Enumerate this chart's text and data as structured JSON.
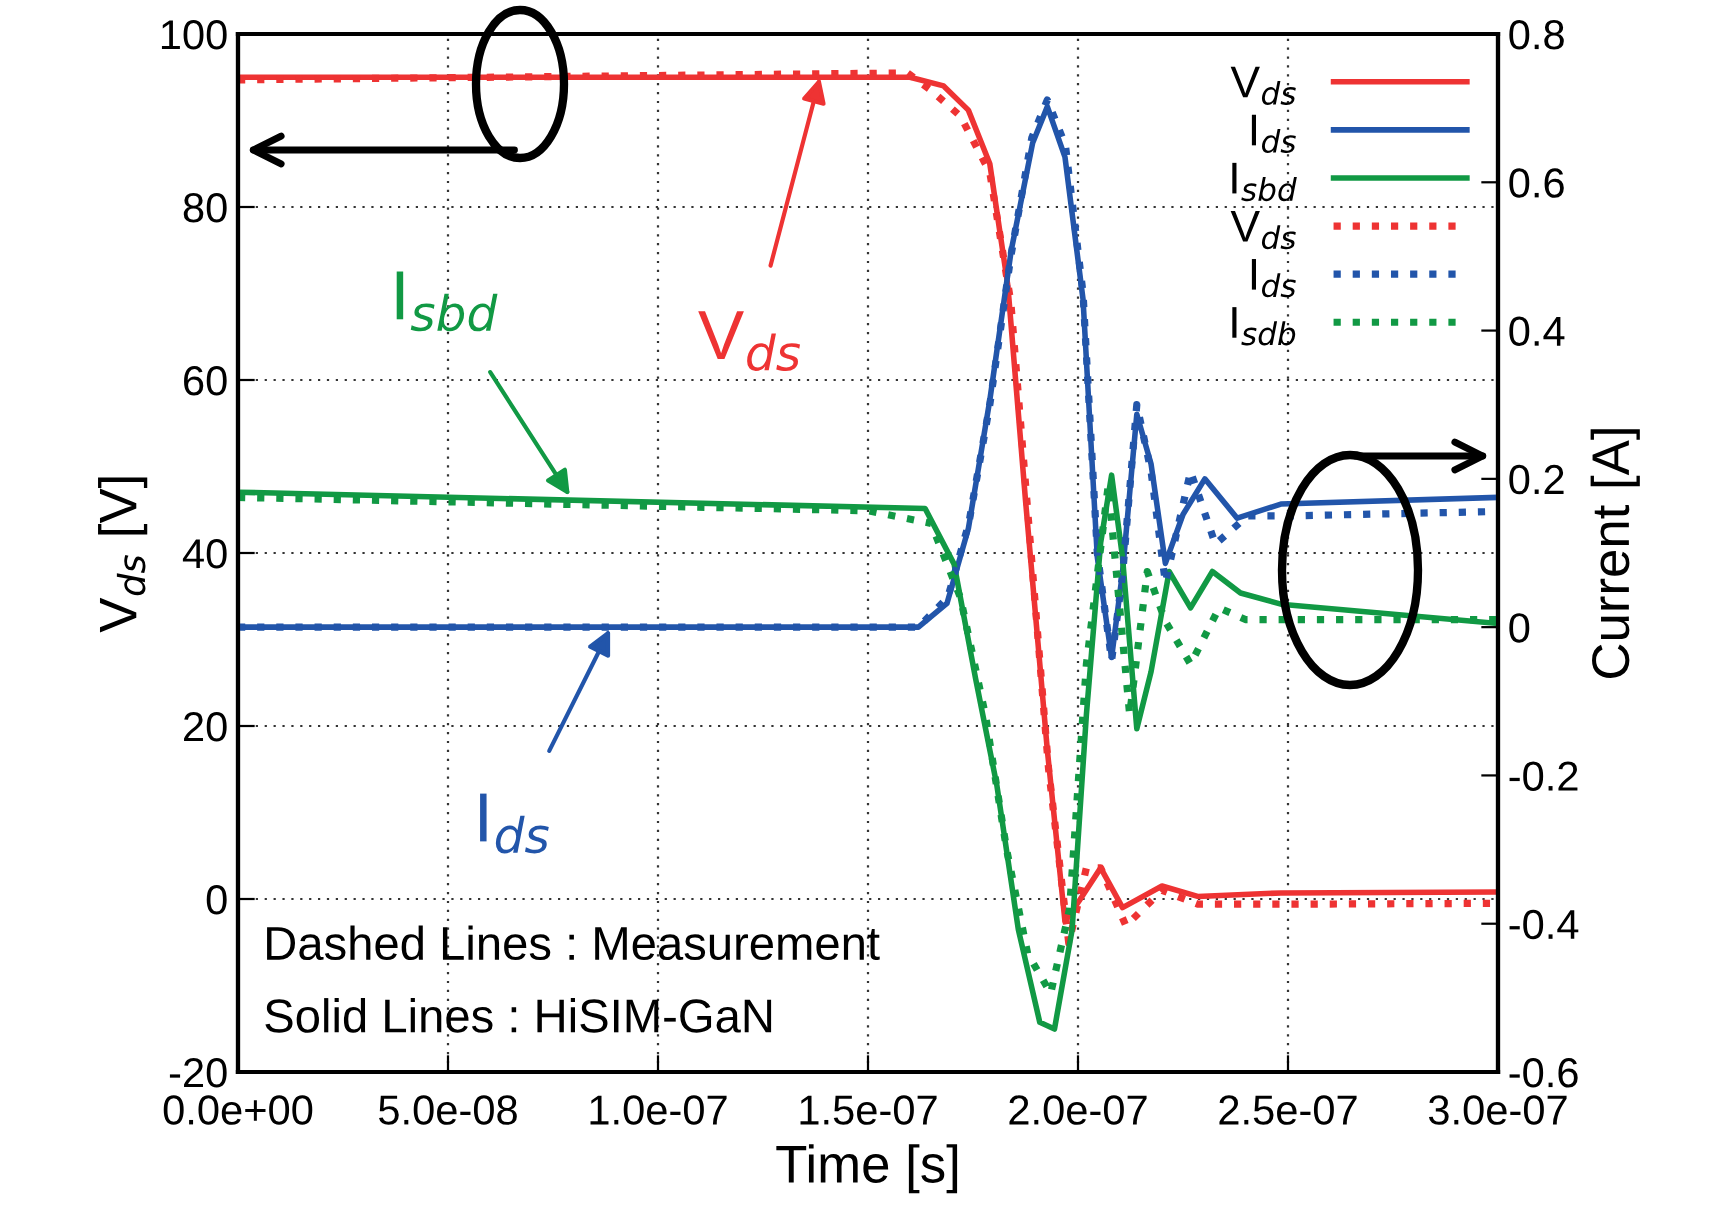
{
  "chart_data": {
    "type": "line",
    "xlabel": "Time [s]",
    "ylabel": "V$_{ds}$ [V]",
    "y2label": "Current [A]",
    "xlim": [
      0,
      3e-07
    ],
    "xticks": [
      {
        "value": 0,
        "label": "0.0e+00"
      },
      {
        "value": 5e-08,
        "label": "5.0e-08"
      },
      {
        "value": 1e-07,
        "label": "1.0e-07"
      },
      {
        "value": 1.5e-07,
        "label": "1.5e-07"
      },
      {
        "value": 2e-07,
        "label": "2.0e-07"
      },
      {
        "value": 2.5e-07,
        "label": "2.5e-07"
      },
      {
        "value": 3e-07,
        "label": "3.0e-07"
      }
    ],
    "ylim": [
      -20,
      100
    ],
    "yticks": [
      -20,
      0,
      20,
      40,
      60,
      80,
      100
    ],
    "y2lim": [
      -0.6,
      0.8
    ],
    "y2ticks": [
      -0.6,
      -0.4,
      -0.2,
      0,
      0.2,
      0.4,
      0.6,
      0.8
    ],
    "grid": true,
    "legend": "top right",
    "marker": "none",
    "series": [
      {
        "name": "V$_{ds}$",
        "color": "#ee3333",
        "line_style": "solid",
        "x": [
          0,
          1.6e-07,
          1.68e-07,
          1.739e-07,
          1.79e-07,
          1.833e-07,
          1.875e-07,
          1.927e-07,
          1.969e-07,
          2.003e-07,
          2.054e-07,
          2.106e-07,
          2.2e-07,
          2.285e-07,
          2.483e-07,
          3e-07
        ],
        "values": [
          95.0,
          95.0,
          94.0,
          91.2,
          85.0,
          70.9,
          46.1,
          17.2,
          -2.6,
          -0.2,
          3.6,
          -1.0,
          1.5,
          0.3,
          0.7,
          0.8
        ]
      },
      {
        "name": "I$_{ds}$",
        "color": "#2255aa",
        "line_style": "solid",
        "axis": "y2",
        "x": [
          0,
          1.62e-07,
          1.688e-07,
          1.739e-07,
          1.79e-07,
          1.841e-07,
          1.892e-07,
          1.927e-07,
          1.969e-07,
          2.012e-07,
          2.046e-07,
          2.08e-07,
          2.106e-07,
          2.14e-07,
          2.174e-07,
          2.208e-07,
          2.25e-07,
          2.302e-07,
          2.379e-07,
          2.483e-07,
          3e-07
        ],
        "values": [
          0,
          0,
          0.032,
          0.133,
          0.306,
          0.508,
          0.653,
          0.702,
          0.634,
          0.442,
          0.094,
          -0.041,
          0.074,
          0.287,
          0.22,
          0.086,
          0.152,
          0.2,
          0.147,
          0.166,
          0.175
        ]
      },
      {
        "name": "I$_{sbd}$",
        "color": "#119944",
        "line_style": "solid",
        "axis": "y2",
        "x": [
          0,
          1.636e-07,
          1.705e-07,
          1.756e-07,
          1.807e-07,
          1.858e-07,
          1.909e-07,
          1.944e-07,
          1.986e-07,
          2.02e-07,
          2.054e-07,
          2.08e-07,
          2.106e-07,
          2.14e-07,
          2.174e-07,
          2.217e-07,
          2.268e-07,
          2.32e-07,
          2.387e-07,
          2.483e-07,
          3e-07
        ],
        "values": [
          0.182,
          0.16,
          0.085,
          -0.069,
          -0.214,
          -0.408,
          -0.533,
          -0.542,
          -0.408,
          -0.118,
          0.114,
          0.205,
          0.094,
          -0.137,
          -0.06,
          0.075,
          0.026,
          0.075,
          0.046,
          0.031,
          0.005
        ]
      },
      {
        "name": "V$_{ds}$",
        "color": "#ee3333",
        "line_style": "dotted",
        "x": [
          0,
          1.594e-07,
          1.65e-07,
          1.72e-07,
          1.79e-07,
          1.84e-07,
          1.88e-07,
          1.93e-07,
          1.978e-07,
          2.02e-07,
          2.054e-07,
          2.114e-07,
          2.2e-07,
          2.285e-07,
          2.5e-07,
          3e-07
        ],
        "values": [
          94.7,
          95.5,
          93.5,
          90.5,
          84.0,
          69.0,
          45.0,
          15.0,
          -5.1,
          3.6,
          3.6,
          -3.1,
          1.0,
          -0.6,
          -0.6,
          -0.5
        ]
      },
      {
        "name": "I$_{ds}$",
        "color": "#2255aa",
        "line_style": "dotted",
        "axis": "y2",
        "x": [
          0,
          1.62e-07,
          1.69e-07,
          1.74e-07,
          1.79e-07,
          1.84e-07,
          1.89e-07,
          1.927e-07,
          1.97e-07,
          2.012e-07,
          2.046e-07,
          2.08e-07,
          2.106e-07,
          2.14e-07,
          2.174e-07,
          2.208e-07,
          2.268e-07,
          2.327e-07,
          2.404e-07,
          2.5e-07,
          3e-07
        ],
        "values": [
          0,
          0,
          0.04,
          0.14,
          0.3,
          0.5,
          0.66,
          0.711,
          0.65,
          0.45,
          0.1,
          -0.045,
          0.07,
          0.3,
          0.21,
          0.06,
          0.21,
          0.112,
          0.15,
          0.15,
          0.156
        ]
      },
      {
        "name": "I$_{sdb}$",
        "color": "#119944",
        "line_style": "dotted",
        "axis": "y2",
        "x": [
          0,
          1.5e-07,
          1.65e-07,
          1.72e-07,
          1.78e-07,
          1.83e-07,
          1.88e-07,
          1.935e-07,
          1.98e-07,
          2.02e-07,
          2.072e-07,
          2.123e-07,
          2.165e-07,
          2.208e-07,
          2.268e-07,
          2.336e-07,
          2.4e-07,
          2.5e-07,
          3e-07
        ],
        "values": [
          0.175,
          0.157,
          0.14,
          0.04,
          -0.12,
          -0.3,
          -0.44,
          -0.494,
          -0.38,
          -0.05,
          0.191,
          -0.118,
          0.075,
          0.008,
          -0.05,
          0.026,
          0.01,
          0.01,
          0.01
        ]
      }
    ],
    "annotations": [
      {
        "text": "V$_{ds}$",
        "x": 1.386e-07,
        "y": 95
      },
      {
        "text": "I$_{sbd}$",
        "x": 7.9e-08,
        "y": 46.6
      },
      {
        "text": "I$_{ds}$",
        "x": 8.86e-08,
        "y": 31.2
      },
      "Dashed Lines : Measurement",
      "Solid Lines : HiSIM-GaN"
    ]
  }
}
